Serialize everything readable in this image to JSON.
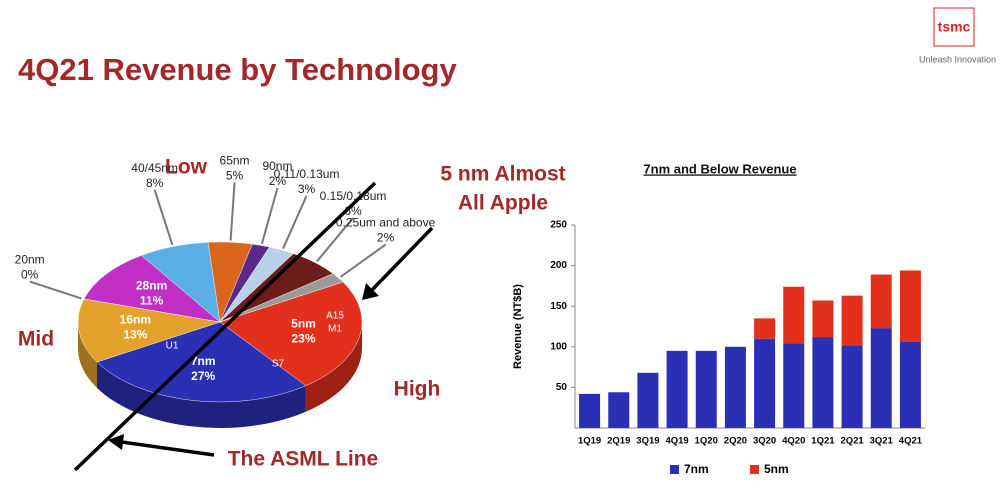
{
  "header": {
    "title": "4Q21 Revenue by Technology",
    "logo": "tsmc",
    "tagline": "Unleash Innovation"
  },
  "annotations": {
    "low": "Low",
    "mid": "Mid",
    "high": "High",
    "apple": [
      "5 nm Almost",
      "All Apple"
    ],
    "asml": "The ASML Line",
    "chips": [
      "A15",
      "M1",
      "S7",
      "U1"
    ]
  },
  "chart_data": [
    {
      "type": "pie",
      "categories": [
        "5nm",
        "7nm",
        "16nm",
        "20nm",
        "28nm",
        "40/45nm",
        "65nm",
        "90nm",
        "0.11/0.13um",
        "0.15/0.18um",
        "0.25um and above"
      ],
      "values": [
        23,
        27,
        13,
        0,
        11,
        8,
        5,
        2,
        3,
        6,
        2
      ],
      "value_labels": [
        "23%",
        "27%",
        "13%",
        "0%",
        "11%",
        "8%",
        "5%",
        "2%",
        "3%",
        "6%",
        "2%"
      ],
      "colors": [
        "#e2301d",
        "#2b2fb3",
        "#e2a22c",
        "#c8c8c8",
        "#c22fc6",
        "#5aaee6",
        "#d9661c",
        "#5a2a8a",
        "#b9d1e8",
        "#6e1b1b",
        "#9a9a9a"
      ]
    },
    {
      "type": "bar",
      "title": "7nm and Below Revenue",
      "y_label": "Revenue (NT$B)",
      "categories": [
        "1Q19",
        "2Q19",
        "3Q19",
        "4Q19",
        "1Q20",
        "2Q20",
        "3Q20",
        "4Q20",
        "1Q21",
        "2Q21",
        "3Q21",
        "4Q21"
      ],
      "series": [
        {
          "name": "7nm",
          "color": "#2b2fb3",
          "values": [
            42,
            44,
            68,
            95,
            95,
            100,
            110,
            104,
            112,
            102,
            123,
            106
          ]
        },
        {
          "name": "5nm",
          "color": "#e2301d",
          "values": [
            0,
            0,
            0,
            0,
            0,
            0,
            25,
            70,
            45,
            61,
            66,
            88
          ]
        }
      ],
      "stacked": true,
      "ylim": [
        0,
        250
      ],
      "yticks": [
        50,
        100,
        150,
        200,
        250
      ],
      "grid": false,
      "legend": "bottom"
    }
  ]
}
